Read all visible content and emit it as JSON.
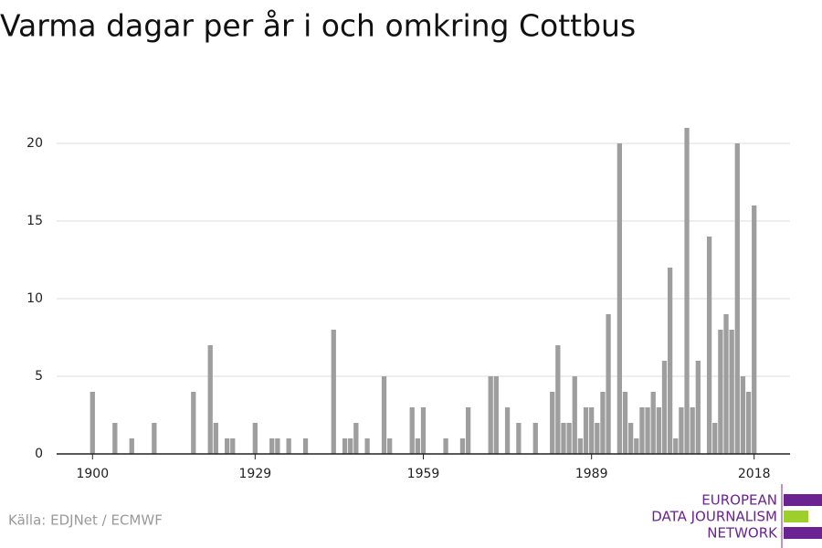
{
  "chart_data": {
    "type": "bar",
    "title": "Varma dagar per år i och omkring Cottbus",
    "source": "Källa: EDJNet / ECMWF",
    "x": [
      1900,
      1904,
      1907,
      1911,
      1918,
      1921,
      1922,
      1924,
      1925,
      1929,
      1932,
      1933,
      1935,
      1938,
      1943,
      1945,
      1946,
      1947,
      1949,
      1952,
      1953,
      1957,
      1958,
      1959,
      1963,
      1966,
      1967,
      1971,
      1972,
      1974,
      1976,
      1979,
      1982,
      1983,
      1984,
      1985,
      1986,
      1987,
      1988,
      1989,
      1990,
      1991,
      1992,
      1994,
      1995,
      1996,
      1997,
      1998,
      1999,
      2000,
      2001,
      2002,
      2003,
      2004,
      2005,
      2006,
      2007,
      2008,
      2010,
      2011,
      2012,
      2013,
      2014,
      2015,
      2016,
      2017,
      2018
    ],
    "values": [
      4,
      2,
      1,
      2,
      4,
      7,
      2,
      1,
      1,
      2,
      1,
      1,
      1,
      1,
      8,
      1,
      1,
      2,
      1,
      5,
      1,
      3,
      1,
      3,
      1,
      1,
      3,
      5,
      5,
      3,
      2,
      2,
      4,
      7,
      2,
      2,
      5,
      1,
      3,
      3,
      2,
      4,
      9,
      20,
      4,
      2,
      1,
      3,
      3,
      4,
      3,
      6,
      12,
      1,
      3,
      21,
      3,
      6,
      14,
      2,
      8,
      9,
      8,
      20,
      5,
      4,
      16
    ],
    "color": "#9e9e9e",
    "xlim": [
      1893.6,
      2024.4
    ],
    "xticks": [
      1900,
      1929,
      1959,
      1989,
      2018
    ],
    "ylim": [
      0,
      22
    ],
    "yticks": [
      0,
      5,
      10,
      15,
      20
    ],
    "grid": true
  },
  "logo": {
    "lines": [
      "EUROPEAN",
      "DATA JOURNALISM",
      "NETWORK"
    ]
  }
}
